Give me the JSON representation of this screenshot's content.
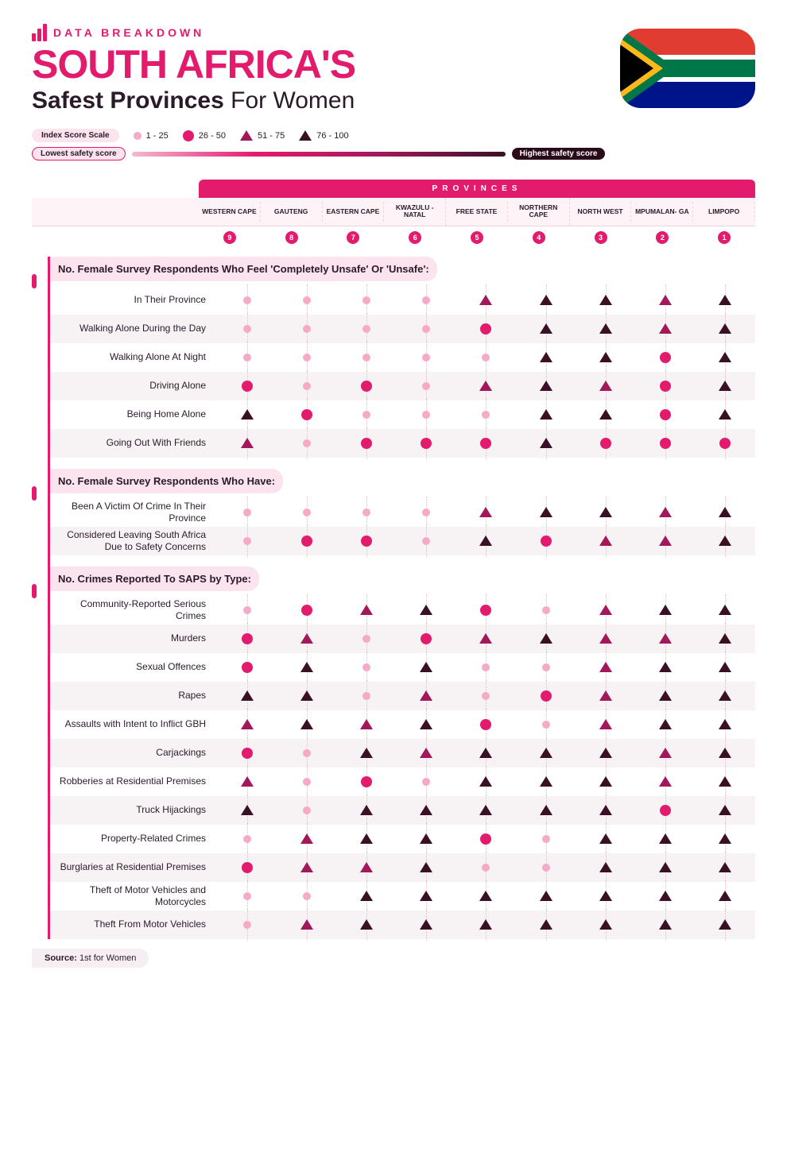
{
  "pretitle": "DATA BREAKDOWN",
  "title_main": "SOUTH AFRICA'S",
  "title_sub_bold": "Safest Provinces",
  "title_sub_light": " For Women",
  "legend": {
    "scale_label": "Index Score Scale",
    "lowest_label": "Lowest",
    "lowest_suffix": " safety score",
    "highest_label": "Highest",
    "highest_suffix": " safety score",
    "buckets": [
      "1 - 25",
      "26 - 50",
      "51 - 75",
      "76 - 100"
    ]
  },
  "colors": {
    "accent": "#e31b6d",
    "bucket1": "#f7a9c8",
    "bucket2": "#e31b6d",
    "bucket3": "#a3185a",
    "bucket4": "#3a1025",
    "stripe": "#f7f3f5",
    "soft": "#fbe4ee"
  },
  "provinces_header": "PROVINCES",
  "provinces": [
    "WESTERN CAPE",
    "GAUTENG",
    "EASTERN CAPE",
    "KWAZULU -NATAL",
    "FREE STATE",
    "NORTHERN CAPE",
    "NORTH WEST",
    "MPUMALAN- GA",
    "LIMPOPO"
  ],
  "ranks": [
    "9",
    "8",
    "7",
    "6",
    "5",
    "4",
    "3",
    "2",
    "1"
  ],
  "sections": [
    {
      "title": "No. Female Survey Respondents Who Feel 'Completely Unsafe' Or 'Unsafe':",
      "rows": [
        {
          "label": "In Their Province",
          "v": [
            1,
            1,
            1,
            1,
            3,
            4,
            4,
            3,
            4
          ]
        },
        {
          "label": "Walking Alone During the Day",
          "v": [
            1,
            1,
            1,
            1,
            2,
            4,
            4,
            3,
            4
          ]
        },
        {
          "label": "Walking Alone At Night",
          "v": [
            1,
            1,
            1,
            1,
            1,
            4,
            4,
            2,
            4
          ]
        },
        {
          "label": "Driving Alone",
          "v": [
            2,
            1,
            2,
            1,
            3,
            4,
            3,
            2,
            4
          ]
        },
        {
          "label": "Being Home Alone",
          "v": [
            4,
            2,
            1,
            1,
            1,
            4,
            4,
            2,
            4
          ]
        },
        {
          "label": "Going Out With Friends",
          "v": [
            3,
            1,
            2,
            2,
            2,
            4,
            2,
            2,
            2
          ]
        }
      ]
    },
    {
      "title": "No. Female Survey Respondents Who Have:",
      "rows": [
        {
          "label": "Been A Victim Of Crime In Their Province",
          "v": [
            1,
            1,
            1,
            1,
            3,
            4,
            4,
            3,
            4
          ]
        },
        {
          "label": "Considered Leaving South Africa Due to Safety Concerns",
          "v": [
            1,
            2,
            2,
            1,
            4,
            2,
            3,
            3,
            4
          ]
        }
      ]
    },
    {
      "title": "No. Crimes Reported To SAPS by Type:",
      "rows": [
        {
          "label": "Community-Reported Serious Crimes",
          "v": [
            1,
            2,
            3,
            4,
            2,
            1,
            3,
            4,
            4
          ]
        },
        {
          "label": "Murders",
          "v": [
            2,
            3,
            1,
            2,
            3,
            4,
            3,
            3,
            4
          ]
        },
        {
          "label": "Sexual Offences",
          "v": [
            2,
            4,
            1,
            4,
            1,
            1,
            3,
            4,
            4
          ]
        },
        {
          "label": "Rapes",
          "v": [
            4,
            4,
            1,
            3,
            1,
            2,
            3,
            4,
            4
          ]
        },
        {
          "label": "Assaults with Intent to Inflict GBH",
          "v": [
            3,
            4,
            3,
            4,
            2,
            1,
            3,
            4,
            4
          ]
        },
        {
          "label": "Carjackings",
          "v": [
            2,
            1,
            4,
            3,
            4,
            4,
            4,
            3,
            4
          ]
        },
        {
          "label": "Robberies at Residential Premises",
          "v": [
            3,
            1,
            2,
            1,
            4,
            4,
            4,
            3,
            4
          ]
        },
        {
          "label": "Truck Hijackings",
          "v": [
            4,
            1,
            4,
            4,
            4,
            4,
            4,
            2,
            4
          ]
        },
        {
          "label": "Property-Related Crimes",
          "v": [
            1,
            3,
            4,
            4,
            2,
            1,
            4,
            4,
            4
          ]
        },
        {
          "label": "Burglaries at Residential Premises",
          "v": [
            2,
            3,
            3,
            4,
            1,
            1,
            4,
            4,
            4
          ]
        },
        {
          "label": "Theft of Motor Vehicles and Motorcycles",
          "v": [
            1,
            1,
            4,
            4,
            4,
            4,
            4,
            4,
            4
          ]
        },
        {
          "label": "Theft From Motor Vehicles",
          "v": [
            1,
            3,
            4,
            4,
            4,
            4,
            4,
            4,
            4
          ]
        }
      ]
    }
  ],
  "source_label": "Source:",
  "source_value": " 1st for Women"
}
